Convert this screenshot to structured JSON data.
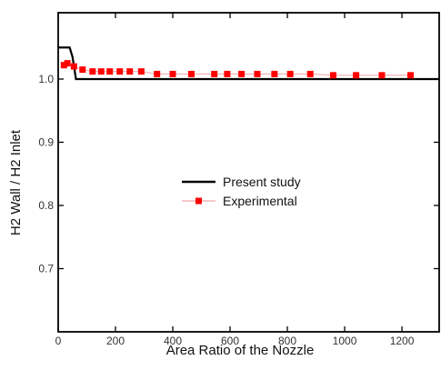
{
  "chart_data": {
    "type": "line",
    "title": "",
    "xlabel": "Area Ratio of the Nozzle",
    "ylabel": "H2 Wall  / H2 Inlet",
    "xlim": [
      0,
      1330
    ],
    "ylim": [
      0.6,
      1.105
    ],
    "xticks": [
      0,
      200,
      400,
      600,
      800,
      1000,
      1200
    ],
    "yticks": [
      0.7,
      0.8,
      0.9,
      1.0
    ],
    "ytick_labels": [
      "0.7",
      "0.8",
      "0.9",
      "1.0"
    ],
    "grid": false,
    "legend_position": "center",
    "series": [
      {
        "name": "Present study",
        "style": "line",
        "color": "#000000",
        "x": [
          0,
          40,
          50,
          62,
          1330
        ],
        "y": [
          1.05,
          1.05,
          1.035,
          1.0,
          1.0
        ]
      },
      {
        "name": "Experimental",
        "style": "line-markers",
        "color": "#ff0000",
        "line_color": "#f4a6a6",
        "marker": "square",
        "x": [
          20,
          32,
          55,
          85,
          120,
          150,
          180,
          215,
          250,
          290,
          345,
          400,
          465,
          545,
          590,
          640,
          695,
          755,
          810,
          880,
          960,
          1040,
          1130,
          1230
        ],
        "y": [
          1.022,
          1.025,
          1.02,
          1.015,
          1.012,
          1.012,
          1.012,
          1.012,
          1.012,
          1.012,
          1.008,
          1.008,
          1.008,
          1.008,
          1.008,
          1.008,
          1.008,
          1.008,
          1.008,
          1.008,
          1.006,
          1.006,
          1.006,
          1.006
        ]
      }
    ]
  }
}
